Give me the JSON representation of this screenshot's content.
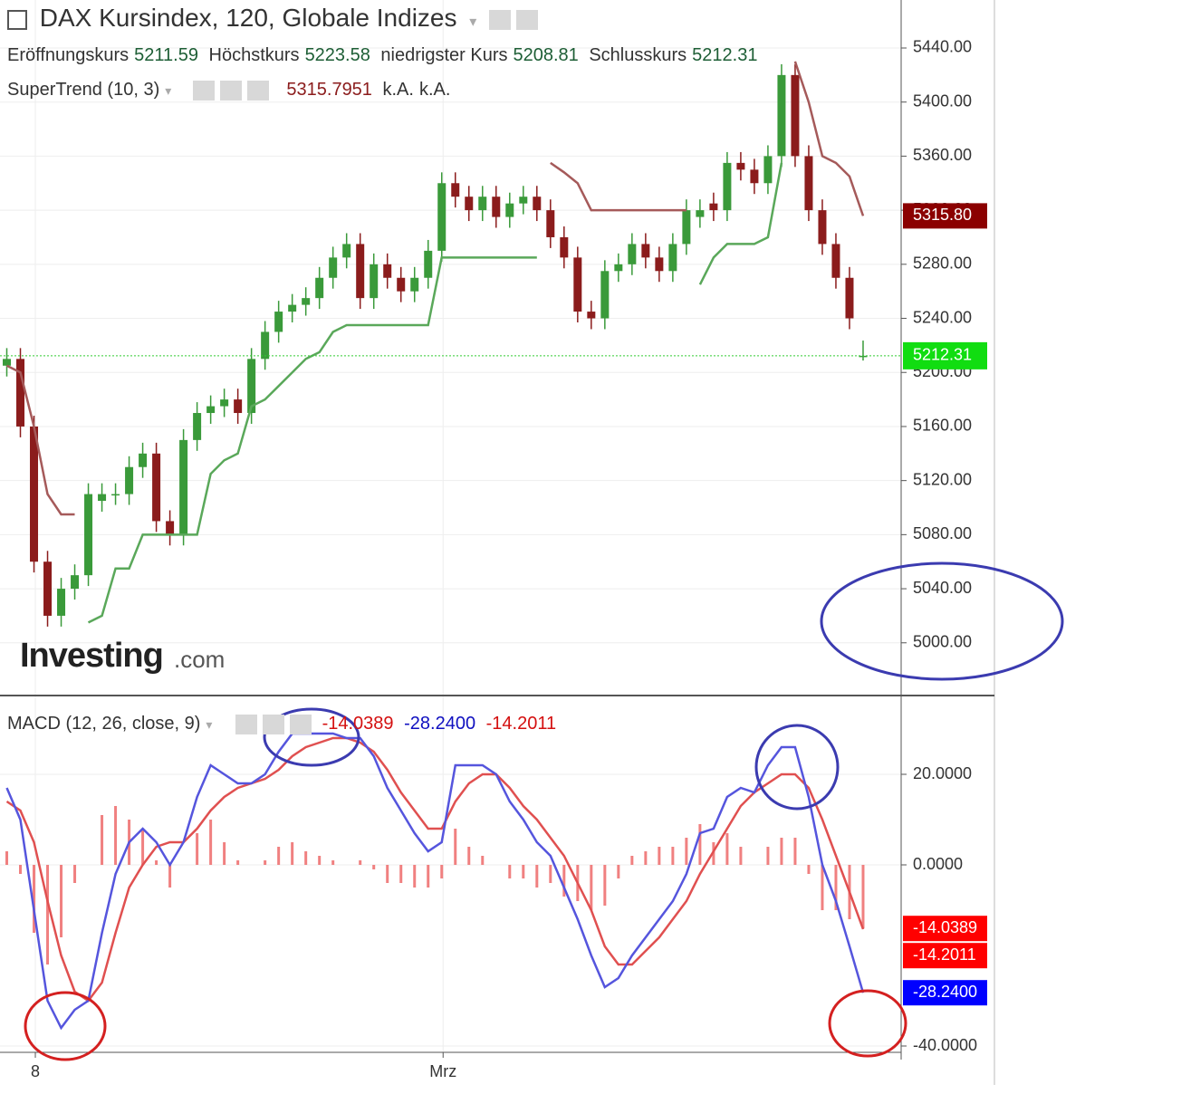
{
  "chart_data": [
    {
      "type": "candlestick",
      "title": "DAX Kursindex, 120, Globale Indizes",
      "ohlc_labels": [
        "Eröffnungskurs",
        "Höchstkurs",
        "niedrigster Kurs",
        "Schlusskurs"
      ],
      "x": [
        0,
        1,
        2,
        3,
        4,
        5,
        6,
        7,
        8,
        9,
        10,
        11,
        12,
        13,
        14,
        15,
        16,
        17,
        18,
        19,
        20,
        21,
        22,
        23,
        24,
        25,
        26,
        27,
        28,
        29,
        30,
        31,
        32,
        33,
        34,
        35,
        36,
        37,
        38,
        39,
        40,
        41,
        42,
        43,
        44,
        45,
        46,
        47,
        48,
        49,
        50,
        51,
        52,
        53,
        54,
        55,
        56,
        57,
        58,
        59,
        60,
        61,
        62,
        63
      ],
      "open": [
        5205,
        5210,
        5160,
        5060,
        5020,
        5040,
        5050,
        5105,
        5110,
        5110,
        5130,
        5140,
        5090,
        5080,
        5150,
        5170,
        5175,
        5180,
        5170,
        5210,
        5230,
        5245,
        5250,
        5255,
        5270,
        5285,
        5295,
        5255,
        5280,
        5270,
        5260,
        5270,
        5290,
        5340,
        5330,
        5320,
        5330,
        5315,
        5325,
        5330,
        5320,
        5300,
        5285,
        5245,
        5240,
        5275,
        5280,
        5295,
        5285,
        5275,
        5295,
        5315,
        5325,
        5320,
        5355,
        5350,
        5340,
        5360,
        5420,
        5360,
        5320,
        5295,
        5270,
        5211.59
      ],
      "high": [
        5218,
        5218,
        5168,
        5068,
        5048,
        5058,
        5118,
        5118,
        5118,
        5138,
        5148,
        5148,
        5098,
        5158,
        5178,
        5183,
        5188,
        5188,
        5218,
        5238,
        5253,
        5258,
        5263,
        5278,
        5293,
        5303,
        5303,
        5288,
        5288,
        5278,
        5278,
        5298,
        5348,
        5348,
        5338,
        5338,
        5338,
        5333,
        5338,
        5338,
        5328,
        5308,
        5293,
        5253,
        5283,
        5288,
        5303,
        5303,
        5293,
        5303,
        5328,
        5328,
        5333,
        5363,
        5363,
        5358,
        5368,
        5428,
        5428,
        5368,
        5328,
        5303,
        5278,
        5223.58
      ],
      "low": [
        5197,
        5152,
        5052,
        5012,
        5012,
        5032,
        5042,
        5097,
        5102,
        5102,
        5122,
        5082,
        5072,
        5072,
        5142,
        5162,
        5167,
        5162,
        5162,
        5202,
        5222,
        5237,
        5242,
        5247,
        5262,
        5277,
        5247,
        5247,
        5262,
        5252,
        5252,
        5262,
        5282,
        5322,
        5312,
        5312,
        5307,
        5307,
        5317,
        5312,
        5292,
        5277,
        5237,
        5232,
        5232,
        5267,
        5272,
        5277,
        5267,
        5267,
        5287,
        5307,
        5312,
        5312,
        5342,
        5332,
        5332,
        5352,
        5352,
        5312,
        5287,
        5262,
        5232,
        5208.81
      ],
      "close": [
        5210,
        5160,
        5060,
        5020,
        5040,
        5050,
        5110,
        5110,
        5110,
        5130,
        5140,
        5090,
        5080,
        5150,
        5170,
        5175,
        5180,
        5170,
        5210,
        5230,
        5245,
        5250,
        5255,
        5270,
        5285,
        5295,
        5255,
        5280,
        5270,
        5260,
        5270,
        5290,
        5340,
        5330,
        5320,
        5330,
        5315,
        5325,
        5330,
        5320,
        5300,
        5285,
        5245,
        5240,
        5275,
        5280,
        5295,
        5285,
        5275,
        5295,
        5320,
        5320,
        5320,
        5355,
        5350,
        5340,
        5360,
        5420,
        5360,
        5320,
        5295,
        5270,
        5240,
        5212.31
      ],
      "up_color": "#3a9a3a",
      "down_color": "#8b1c1c",
      "supertrend": {
        "name": "SuperTrend (10, 3)",
        "value": 5315.7951,
        "tag_label": "5315.80",
        "na": [
          "k.A.",
          "k.A."
        ],
        "up_color": "#5aa85a",
        "down_color": "#a55a5a",
        "upper": [
          5205,
          5200,
          5160,
          5110,
          5095,
          5095,
          null,
          null,
          null,
          null,
          null,
          null,
          null,
          null,
          null,
          null,
          null,
          null,
          null,
          null,
          null,
          null,
          null,
          null,
          null,
          null,
          null,
          null,
          null,
          null,
          null,
          null,
          null,
          null,
          null,
          null,
          null,
          null,
          null,
          null,
          5355,
          5348,
          5340,
          5320,
          5320,
          5320,
          5320,
          5320,
          5320,
          5320,
          5320,
          null,
          null,
          null,
          null,
          null,
          null,
          null,
          5430,
          5400,
          5360,
          5355,
          5345,
          5315.7951
        ],
        "lower": [
          null,
          null,
          null,
          null,
          null,
          null,
          5015,
          5020,
          5055,
          5055,
          5080,
          5080,
          5080,
          5080,
          5080,
          5125,
          5135,
          5140,
          5175,
          5180,
          5190,
          5200,
          5210,
          5215,
          5230,
          5235,
          5235,
          5235,
          5235,
          5235,
          5235,
          5235,
          5285,
          5285,
          5285,
          5285,
          5285,
          5285,
          5285,
          5285,
          null,
          null,
          null,
          null,
          null,
          null,
          null,
          null,
          null,
          null,
          null,
          5265,
          5285,
          5295,
          5295,
          5295,
          5300,
          5355,
          null,
          null,
          null,
          null,
          null,
          null
        ]
      },
      "xlim": [
        -0.5,
        65.8
      ],
      "ylim": [
        4961,
        5475.5
      ],
      "yticks": [
        {
          "value": 5000,
          "label": "5000.00"
        },
        {
          "value": 5040,
          "label": "5040.00"
        },
        {
          "value": 5080,
          "label": "5080.00"
        },
        {
          "value": 5120,
          "label": "5120.00"
        },
        {
          "value": 5160,
          "label": "5160.00"
        },
        {
          "value": 5200,
          "label": "5200.00"
        },
        {
          "value": 5240,
          "label": "5240.00"
        },
        {
          "value": 5280,
          "label": "5280.00"
        },
        {
          "value": 5320,
          "label": "5320.00"
        },
        {
          "value": 5360,
          "label": "5360.00"
        },
        {
          "value": 5400,
          "label": "5400.00"
        },
        {
          "value": 5440,
          "label": "5440.00"
        }
      ],
      "xticks": [
        {
          "value": 2.1,
          "label": "8"
        },
        {
          "value": 32.1,
          "label": "Mrz"
        }
      ],
      "grid": true,
      "watermark": [
        "Investing",
        ".com"
      ]
    },
    {
      "type": "macd",
      "title": "MACD (12, 26, close, 9)",
      "histogram": {
        "color": "#f08080",
        "values": [
          3,
          -2,
          -15,
          -22,
          -16,
          -4,
          0,
          11,
          13,
          10,
          8,
          1,
          -5,
          0,
          7,
          10,
          5,
          1,
          0,
          1,
          4,
          5,
          3,
          2,
          1,
          0,
          1,
          -1,
          -4,
          -4,
          -5,
          -5,
          -3,
          8,
          4,
          2,
          0,
          -3,
          -3,
          -5,
          -4,
          -7,
          -8,
          -10,
          -9,
          -3,
          2,
          3,
          4,
          4,
          6,
          9,
          5,
          7,
          4,
          0,
          4,
          6,
          6,
          -2,
          -10,
          -10,
          -12,
          -14.0389
        ]
      },
      "macd": {
        "color": "#5555dd",
        "value_label": "-28.2400",
        "values": [
          17,
          10,
          -10,
          -30,
          -36,
          -32,
          -30,
          -15,
          -2,
          5,
          8,
          5,
          0,
          5,
          15,
          22,
          20,
          18,
          18,
          20,
          25,
          29,
          29,
          29,
          29,
          28,
          28,
          24,
          17,
          12,
          7,
          3,
          5,
          22,
          22,
          22,
          20,
          14,
          10,
          5,
          2,
          -5,
          -12,
          -20,
          -27,
          -25,
          -20,
          -16,
          -12,
          -8,
          -2,
          7,
          8,
          15,
          17,
          16,
          22,
          26,
          26,
          15,
          0,
          -8,
          -18,
          -28.24
        ]
      },
      "signal": {
        "color": "#e05050",
        "values": [
          14,
          12,
          5,
          -8,
          -20,
          -28,
          -30,
          -26,
          -15,
          -5,
          0,
          4,
          5,
          5,
          8,
          12,
          15,
          17,
          18,
          19,
          21,
          24,
          26,
          27,
          28,
          28,
          27,
          25,
          21,
          16,
          12,
          8,
          8,
          14,
          18,
          20,
          20,
          17,
          13,
          10,
          6,
          2,
          -4,
          -10,
          -18,
          -22,
          -22,
          -19,
          -16,
          -12,
          -8,
          -2,
          3,
          8,
          13,
          16,
          18,
          20,
          20,
          17,
          10,
          2,
          -6,
          -14.2011
        ]
      },
      "ylim": [
        -41.4,
        37
      ],
      "yticks": [
        {
          "value": -40,
          "label": "-40.0000"
        },
        {
          "value": 0,
          "label": "0.0000"
        },
        {
          "value": 20,
          "label": "20.0000"
        }
      ]
    }
  ]
}
